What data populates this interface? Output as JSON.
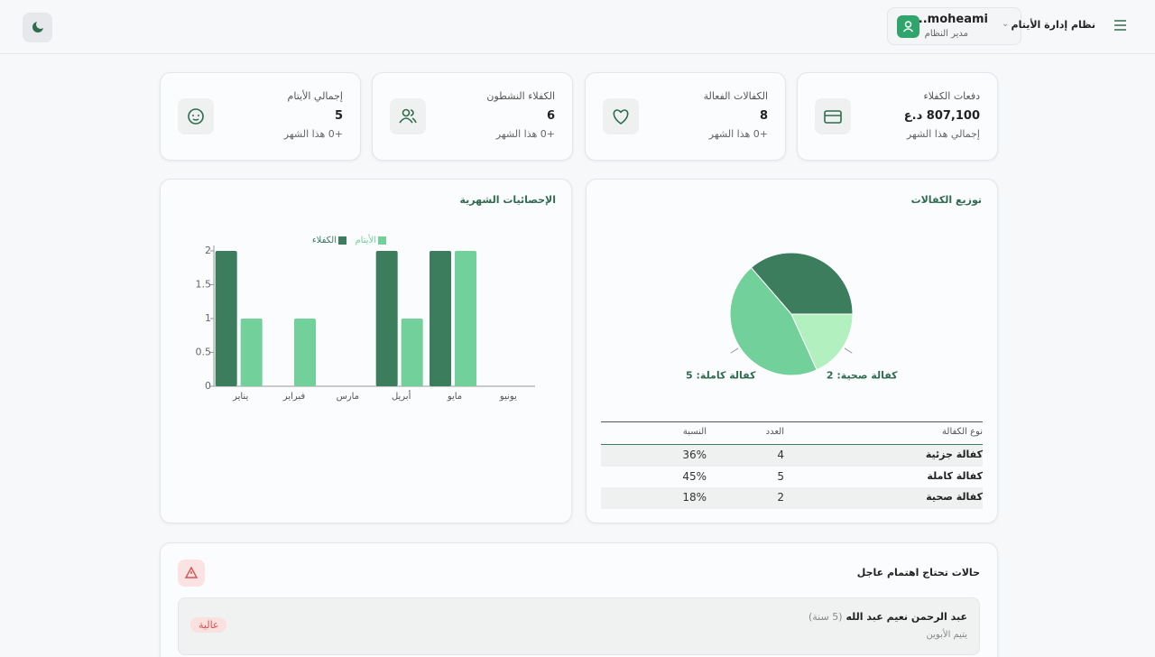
{
  "header": {
    "title": "نظام إدارة الأيتام",
    "user_name": "moheami...",
    "user_role": "مدير النظام"
  },
  "stats": [
    {
      "label": "دفعات الكفلاء",
      "value": "807,100 د.ع",
      "note": "إجمالي هذا الشهر"
    },
    {
      "label": "الكفالات الفعالة",
      "value": 8,
      "note": "+0 هذا الشهر"
    },
    {
      "label": "الكفلاء النشطون",
      "value": 6,
      "note": "+0 هذا الشهر"
    },
    {
      "label": "إجمالي الأيتام",
      "value": 5,
      "note": "+0 هذا الشهر"
    }
  ],
  "chart_data": [
    {
      "type": "bar",
      "title": "الإحصائيات الشهرية",
      "categories": [
        "يناير",
        "فبراير",
        "مارس",
        "أبريل",
        "مايو",
        "يونيو"
      ],
      "series": [
        {
          "name": "الكفلاء",
          "color": "#3b7d5d",
          "values": [
            2,
            0,
            0,
            2,
            2,
            0
          ]
        },
        {
          "name": "الأيتام",
          "color": "#72d19a",
          "values": [
            1,
            1,
            0,
            1,
            2,
            0
          ]
        }
      ],
      "ylim": [
        0,
        2
      ],
      "yticks": [
        0,
        0.5,
        1,
        1.5,
        2
      ],
      "grid": false
    },
    {
      "type": "pie",
      "title": "توزيع الكفالات",
      "categories": [
        "كفالة جزئية",
        "كفالة كاملة",
        "كفالة صحية"
      ],
      "values": [
        4,
        5,
        2
      ],
      "value_labels": [
        null,
        "كفالة كاملة: 5",
        "كفالة صحية: 2"
      ],
      "colors": [
        "#3b7d5d",
        "#72d19a",
        "#b2f0c0"
      ]
    }
  ],
  "distribution_table": {
    "columns": [
      "نوع الكفالة",
      "العدد",
      "النسبة"
    ],
    "rows": [
      [
        "كفالة جزئية",
        4,
        "36%"
      ],
      [
        "كفالة كاملة",
        5,
        "45%"
      ],
      [
        "كفالة صحية",
        2,
        "18%"
      ]
    ]
  },
  "alerts": {
    "title": "حالات تحتاج اهتمام عاجل",
    "items": [
      {
        "name": "عبد الرحمن نعيم عبد الله",
        "age": "(5 سنة)",
        "status": "يتيم الأبوين",
        "priority": "عالية"
      }
    ]
  }
}
